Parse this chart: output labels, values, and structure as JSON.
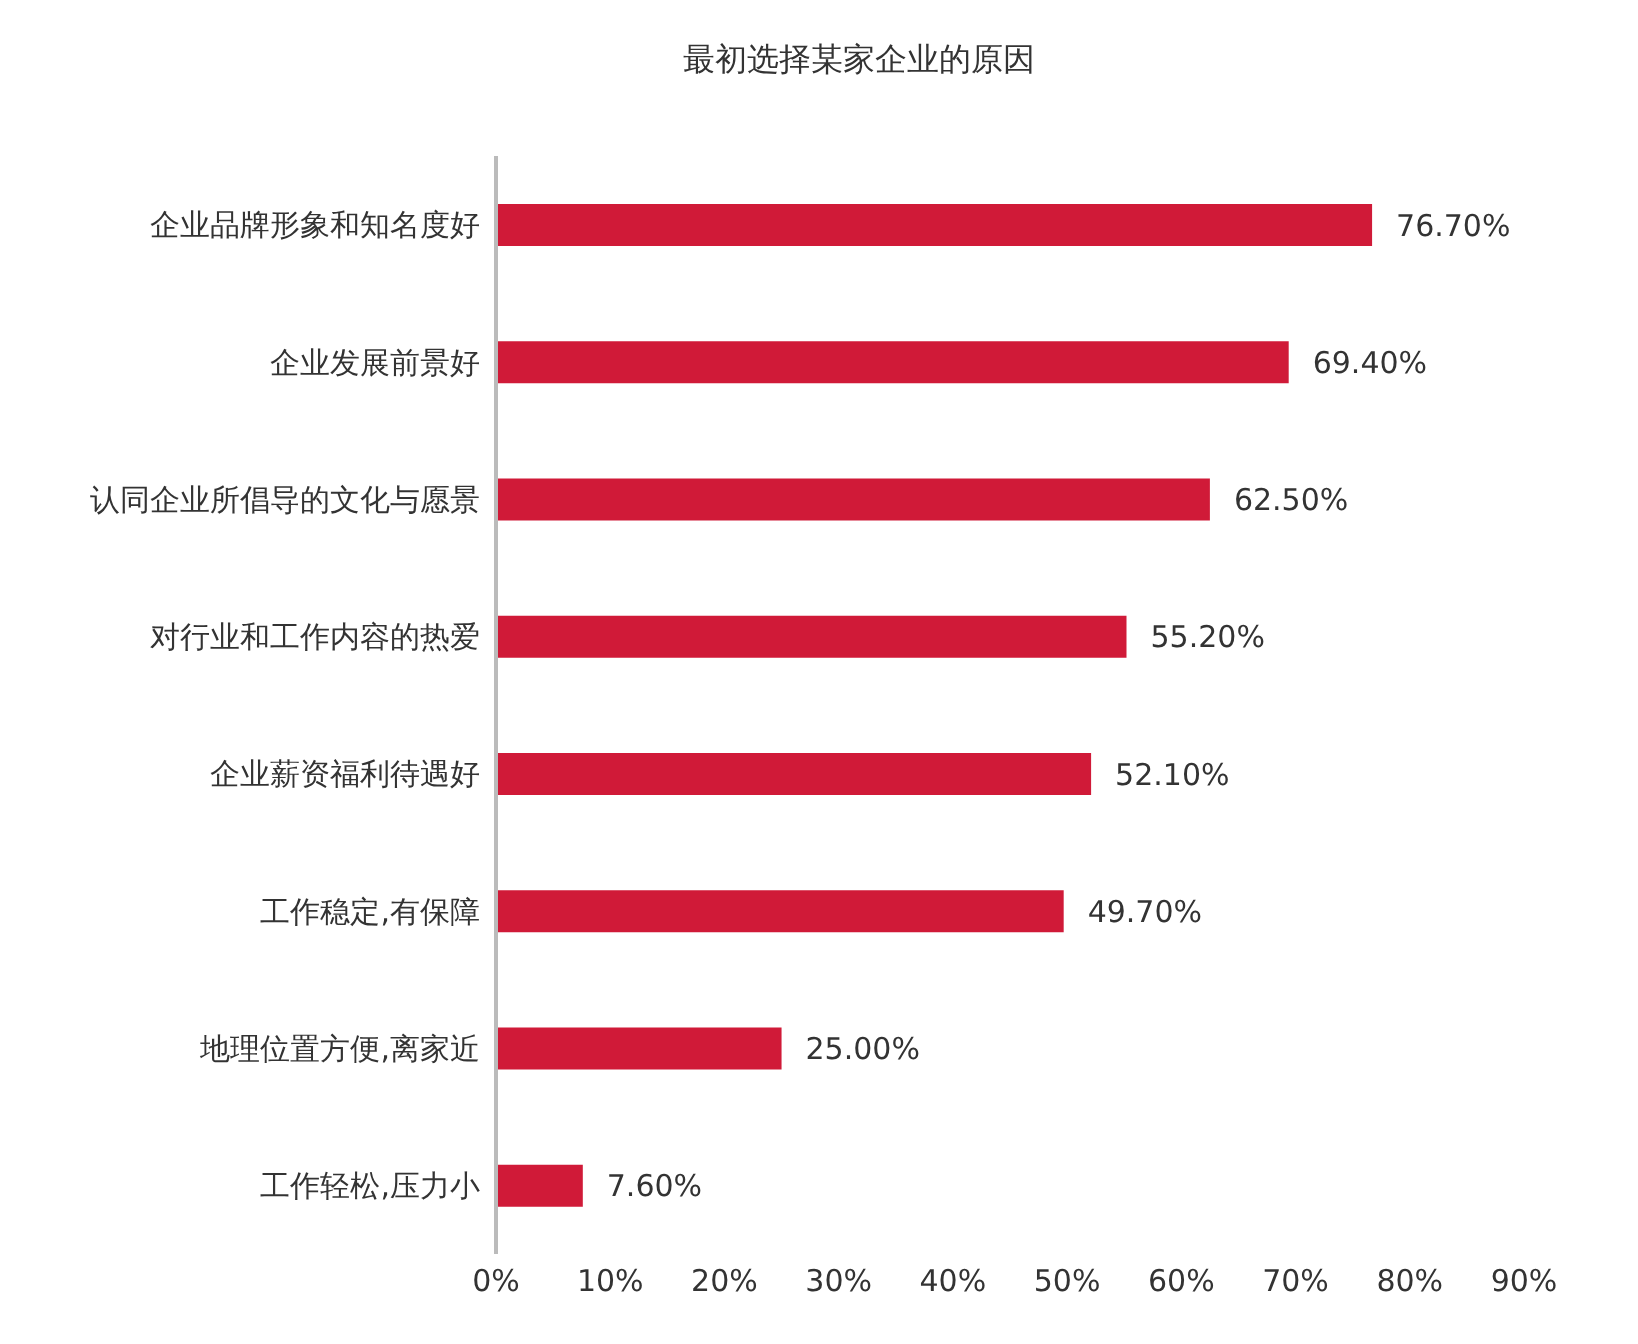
{
  "chart_data": {
    "type": "bar",
    "orientation": "horizontal",
    "title": "最初选择某家企业的原因",
    "categories": [
      "企业品牌形象和知名度好",
      "企业发展前景好",
      "认同企业所倡导的文化与愿景",
      "对行业和工作内容的热爱",
      "企业薪资福利待遇好",
      "工作稳定,有保障",
      "地理位置方便,离家近",
      "工作轻松,压力小"
    ],
    "values": [
      76.7,
      69.4,
      62.5,
      55.2,
      52.1,
      49.7,
      25.0,
      7.6
    ],
    "value_labels": [
      "76.70%",
      "69.40%",
      "62.50%",
      "55.20%",
      "52.10%",
      "49.70%",
      "25.00%",
      "7.60%"
    ],
    "color": "#d01a38",
    "xlim": [
      0,
      90
    ],
    "xticks": [
      {
        "value": 0,
        "label": "0%"
      },
      {
        "value": 10,
        "label": "10%"
      },
      {
        "value": 20,
        "label": "20%"
      },
      {
        "value": 30,
        "label": "30%"
      },
      {
        "value": 40,
        "label": "40%"
      },
      {
        "value": 50,
        "label": "50%"
      },
      {
        "value": 60,
        "label": "60%"
      },
      {
        "value": 70,
        "label": "70%"
      },
      {
        "value": 80,
        "label": "80%"
      },
      {
        "value": 90,
        "label": "90%"
      }
    ],
    "grid": false,
    "legend": false
  }
}
